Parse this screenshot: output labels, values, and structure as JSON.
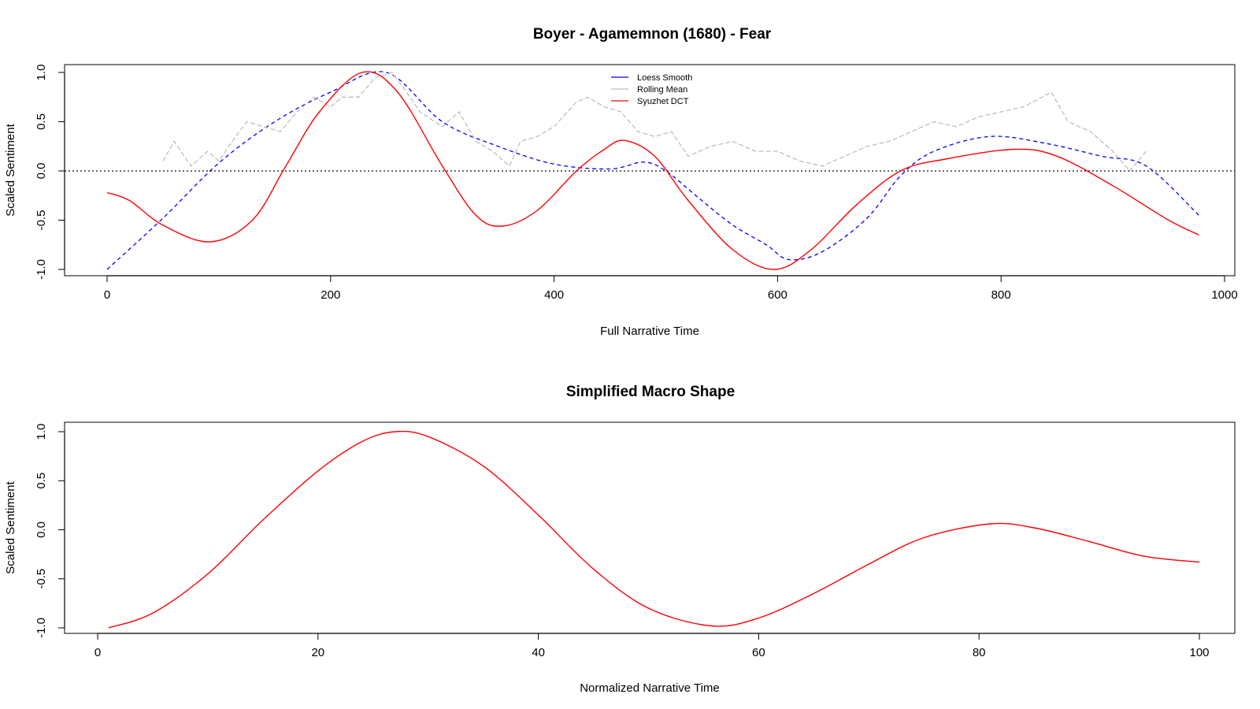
{
  "chart_data": [
    {
      "type": "line",
      "title": "Boyer - Agamemnon (1680) - Fear",
      "xlabel": "Full Narrative Time",
      "ylabel": "Scaled Sentiment",
      "xlim": [
        0,
        1000
      ],
      "ylim": [
        -1.0,
        1.0
      ],
      "x_ticks": [
        "0",
        "200",
        "400",
        "600",
        "800",
        "1000"
      ],
      "y_ticks": [
        "-1.0",
        "-0.5",
        "0.0",
        "0.5",
        "1.0"
      ],
      "reference_line": {
        "y": 0,
        "style": "dotted"
      },
      "legend": {
        "placement": "top-center",
        "entries": [
          "Loess Smooth",
          "Rolling Mean",
          "Syuzhet DCT"
        ]
      },
      "series": [
        {
          "name": "Loess Smooth",
          "color": "#0000FF",
          "style": "dashed",
          "x": [
            0,
            50,
            100,
            150,
            200,
            250,
            300,
            350,
            400,
            450,
            480,
            500,
            530,
            560,
            590,
            610,
            640,
            680,
            710,
            740,
            790,
            840,
            890,
            930,
            977
          ],
          "y": [
            -1.0,
            -0.48,
            0.08,
            0.5,
            0.8,
            1.0,
            0.5,
            0.25,
            0.07,
            0.02,
            0.09,
            0.0,
            -0.28,
            -0.55,
            -0.75,
            -0.9,
            -0.82,
            -0.48,
            -0.05,
            0.2,
            0.35,
            0.28,
            0.15,
            0.05,
            -0.45
          ]
        },
        {
          "name": "Rolling Mean",
          "color": "#BEBEBE",
          "style": "dashed",
          "x": [
            50,
            60,
            75,
            90,
            100,
            115,
            125,
            140,
            155,
            170,
            185,
            200,
            210,
            225,
            240,
            255,
            265,
            280,
            300,
            315,
            330,
            345,
            360,
            370,
            385,
            400,
            420,
            430,
            445,
            460,
            475,
            490,
            505,
            520,
            540,
            560,
            580,
            600,
            620,
            640,
            660,
            680,
            700,
            720,
            740,
            760,
            780,
            800,
            820,
            845,
            860,
            880,
            900,
            915,
            930
          ],
          "y": [
            0.1,
            0.3,
            0.05,
            0.2,
            0.1,
            0.35,
            0.5,
            0.45,
            0.4,
            0.6,
            0.75,
            0.65,
            0.75,
            0.75,
            0.95,
            1.0,
            0.85,
            0.6,
            0.45,
            0.6,
            0.3,
            0.2,
            0.05,
            0.3,
            0.35,
            0.45,
            0.7,
            0.75,
            0.65,
            0.6,
            0.4,
            0.35,
            0.4,
            0.15,
            0.25,
            0.3,
            0.2,
            0.2,
            0.1,
            0.05,
            0.15,
            0.25,
            0.3,
            0.4,
            0.5,
            0.45,
            0.55,
            0.6,
            0.65,
            0.8,
            0.5,
            0.4,
            0.2,
            0.0,
            0.2
          ]
        },
        {
          "name": "Syuzhet DCT",
          "color": "#FF0000",
          "style": "solid",
          "x": [
            0,
            20,
            50,
            92,
            130,
            160,
            190,
            228,
            260,
            300,
            330,
            354,
            385,
            420,
            445,
            463,
            490,
            520,
            560,
            597,
            630,
            670,
            710,
            750,
            812,
            850,
            900,
            950,
            977
          ],
          "y": [
            -0.22,
            -0.3,
            -0.55,
            -0.72,
            -0.5,
            0.05,
            0.6,
            1.0,
            0.8,
            0.05,
            -0.45,
            -0.56,
            -0.4,
            0.0,
            0.22,
            0.31,
            0.15,
            -0.3,
            -0.8,
            -1.0,
            -0.8,
            -0.35,
            0.0,
            0.12,
            0.22,
            0.15,
            -0.15,
            -0.5,
            -0.65
          ]
        }
      ]
    },
    {
      "type": "line",
      "title": "Simplified Macro Shape",
      "xlabel": "Normalized Narrative Time",
      "ylabel": "Scaled Sentiment",
      "xlim": [
        0,
        100
      ],
      "ylim": [
        -1.0,
        1.0
      ],
      "x_ticks": [
        "0",
        "20",
        "40",
        "60",
        "80",
        "100"
      ],
      "y_ticks": [
        "-1.0",
        "-0.5",
        "0.0",
        "0.5",
        "1.0"
      ],
      "series": [
        {
          "color": "#FF0000",
          "style": "solid",
          "x": [
            1,
            5,
            10,
            15,
            20,
            24,
            27,
            30,
            35,
            40,
            45,
            50,
            55.7,
            60,
            65,
            70,
            75,
            81,
            85,
            90,
            95,
            100
          ],
          "y": [
            -1.0,
            -0.85,
            -0.45,
            0.1,
            0.6,
            0.9,
            1.0,
            0.95,
            0.65,
            0.15,
            -0.4,
            -0.8,
            -0.98,
            -0.9,
            -0.65,
            -0.35,
            -0.08,
            0.06,
            0.02,
            -0.12,
            -0.27,
            -0.33
          ]
        }
      ]
    }
  ]
}
